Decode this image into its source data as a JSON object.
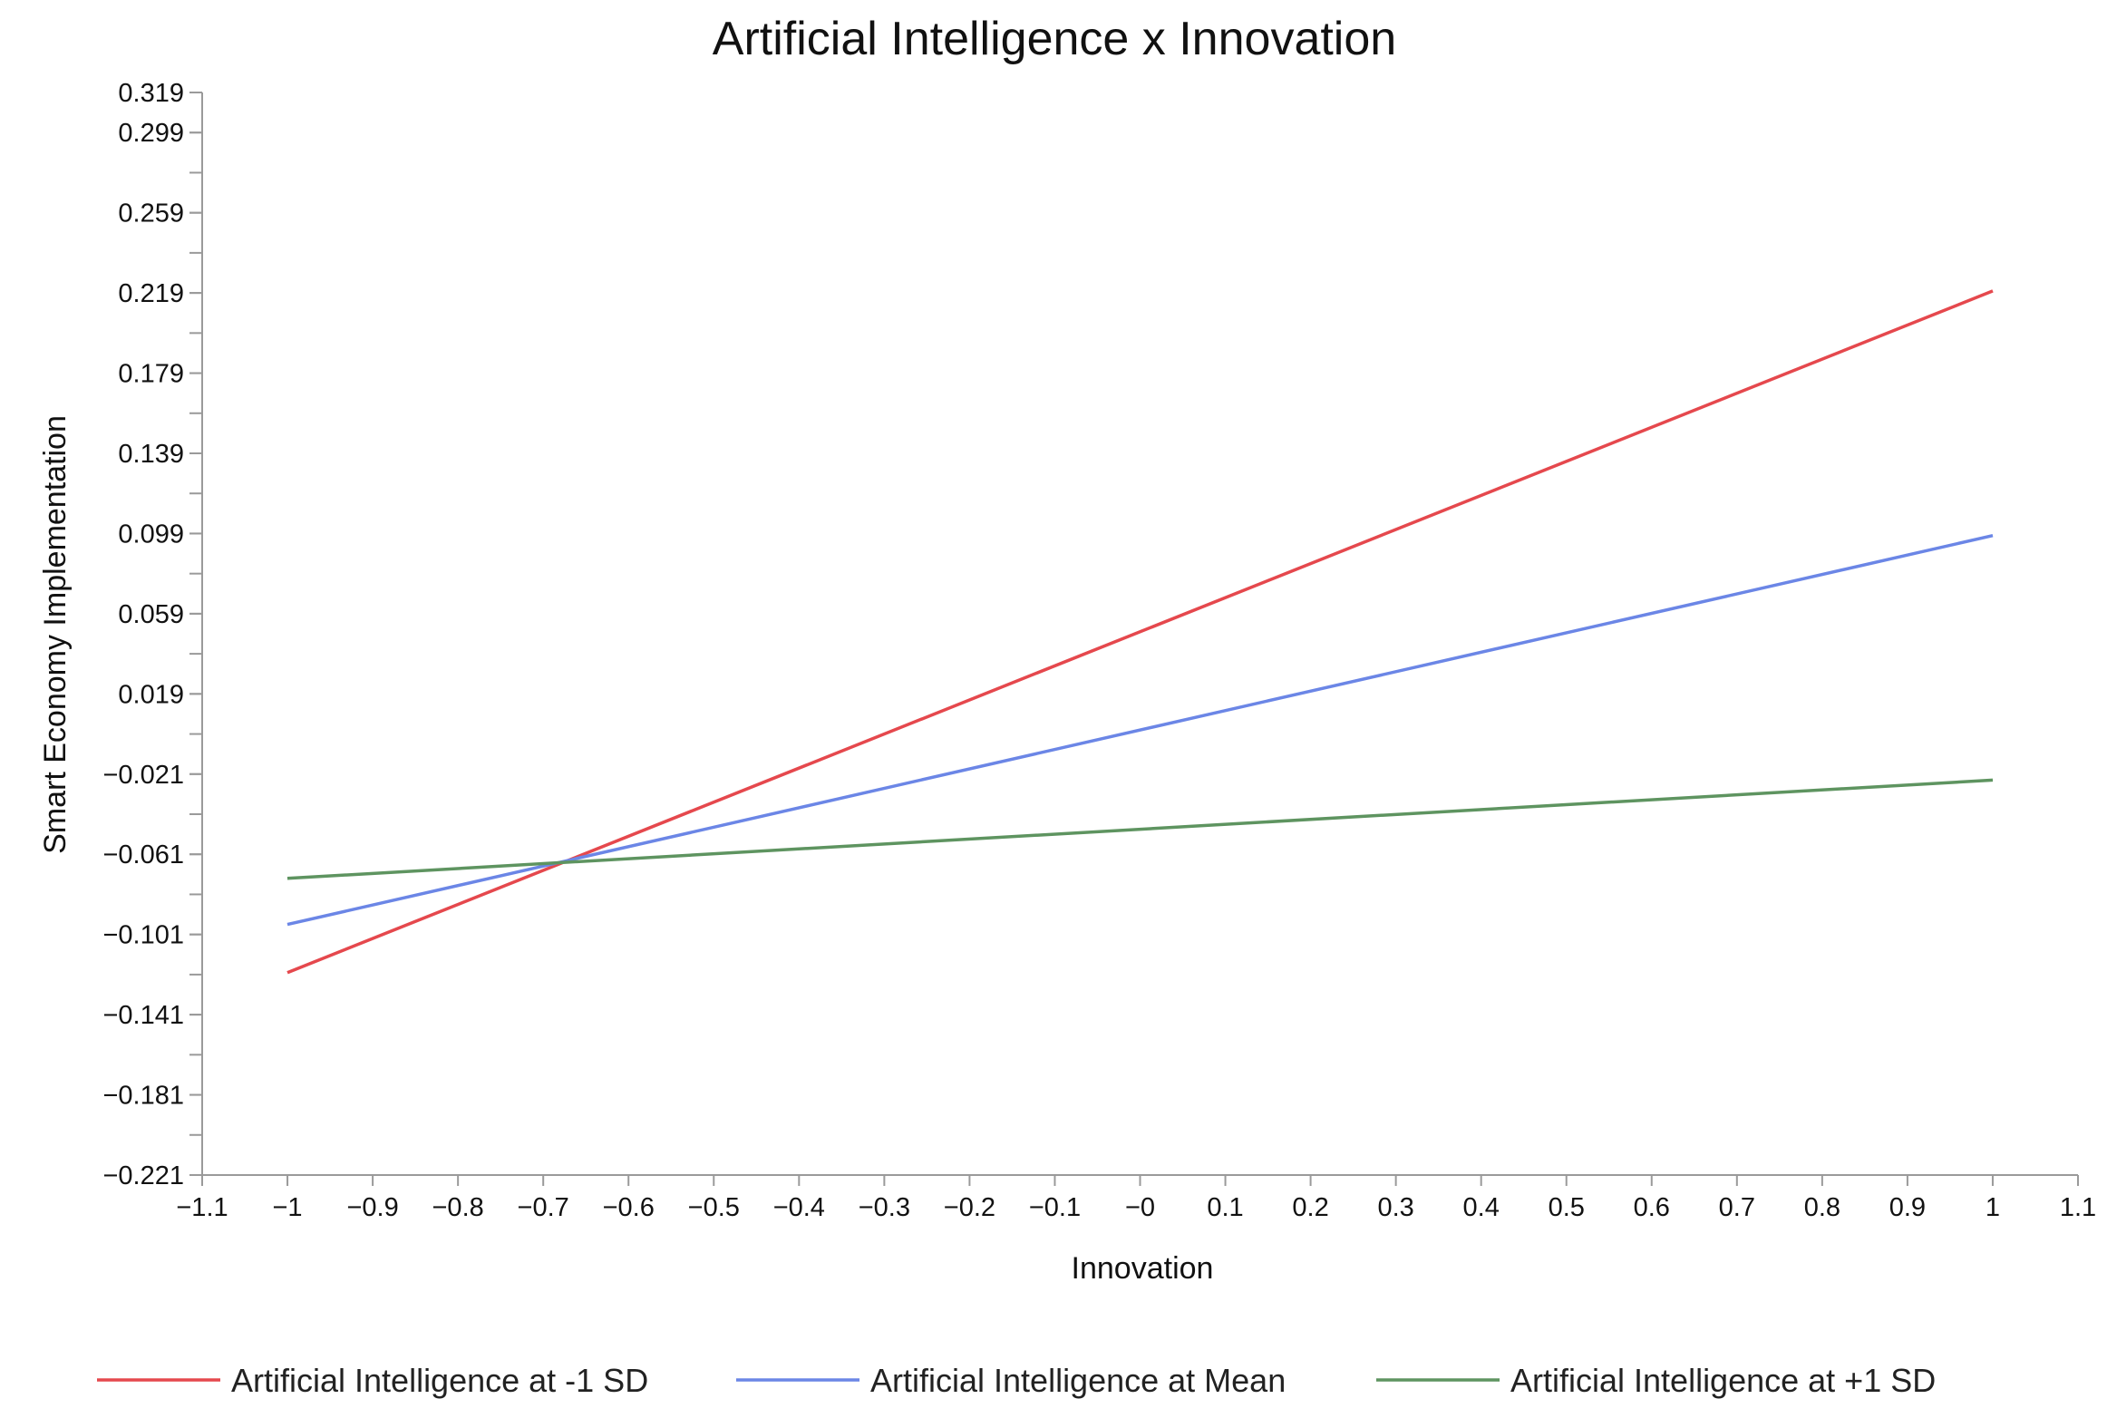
{
  "chart_data": {
    "type": "line",
    "title": "Artificial Intelligence x Innovation",
    "xlabel": "Innovation",
    "ylabel": "Smart Economy Implementation",
    "xlim": [
      -1.1,
      1.1
    ],
    "ylim": [
      -0.221,
      0.319
    ],
    "x_ticks": [
      "−1.1",
      "−1",
      "−0.9",
      "−0.8",
      "−0.7",
      "−0.6",
      "−0.5",
      "−0.4",
      "−0.3",
      "−0.2",
      "−0.1",
      "−0",
      "0.1",
      "0.2",
      "0.3",
      "0.4",
      "0.5",
      "0.6",
      "0.7",
      "0.8",
      "0.9",
      "1",
      "1.1"
    ],
    "y_ticks": [
      "0.319",
      "0.299",
      "0.259",
      "0.219",
      "0.179",
      "0.139",
      "0.099",
      "0.059",
      "0.019",
      "−0.021",
      "−0.061",
      "−0.101",
      "−0.141",
      "−0.181",
      "−0.221"
    ],
    "grid": false,
    "legend_position": "bottom",
    "series": [
      {
        "name": "Artificial Intelligence at -1 SD",
        "color": "#e5484d",
        "x": [
          -1,
          1
        ],
        "y": [
          -0.12,
          0.22
        ]
      },
      {
        "name": "Artificial Intelligence at Mean",
        "color": "#6b86e6",
        "x": [
          -1,
          1
        ],
        "y": [
          -0.096,
          0.098
        ]
      },
      {
        "name": "Artificial Intelligence at +1 SD",
        "color": "#5e9460",
        "x": [
          -1,
          1
        ],
        "y": [
          -0.073,
          -0.024
        ]
      }
    ]
  }
}
